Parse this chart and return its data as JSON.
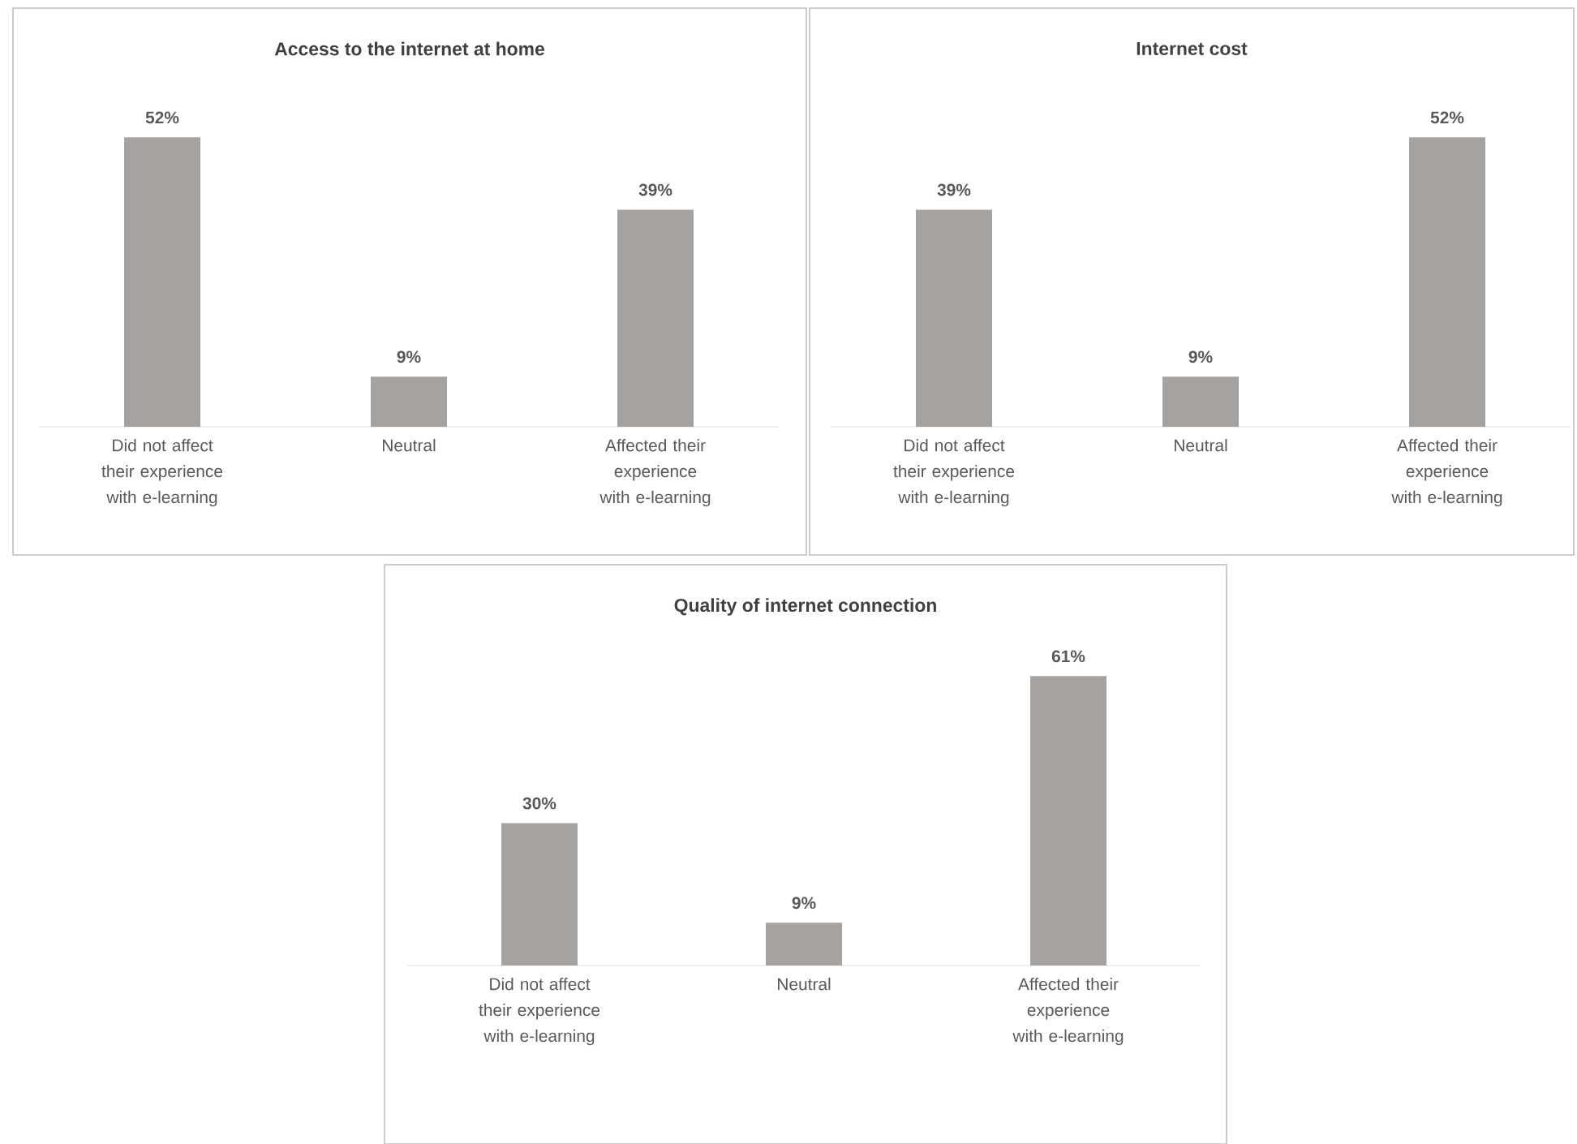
{
  "chart_data": [
    {
      "type": "bar",
      "title": "Access to the internet at home",
      "categories": [
        "Did not affect their experience with e-learning",
        "Neutral",
        "Affected their experience with e-learning"
      ],
      "values": [
        52,
        9,
        39
      ],
      "value_labels": [
        "52%",
        "9%",
        "39%"
      ],
      "color": "#a5a2a0"
    },
    {
      "type": "bar",
      "title": "Internet cost",
      "categories": [
        "Did not affect their experience with e-learning",
        "Neutral",
        "Affected their experience with e-learning"
      ],
      "values": [
        39,
        9,
        52
      ],
      "value_labels": [
        "39%",
        "9%",
        "52%"
      ],
      "color": "#a5a2a0"
    },
    {
      "type": "bar",
      "title": "Quality of internet connection",
      "categories": [
        "Did not affect their experience with e-learning",
        "Neutral",
        "Affected their experience with e-learning"
      ],
      "values": [
        30,
        9,
        61
      ],
      "value_labels": [
        "30%",
        "9%",
        "61%"
      ],
      "color": "#a5a2a0"
    }
  ]
}
